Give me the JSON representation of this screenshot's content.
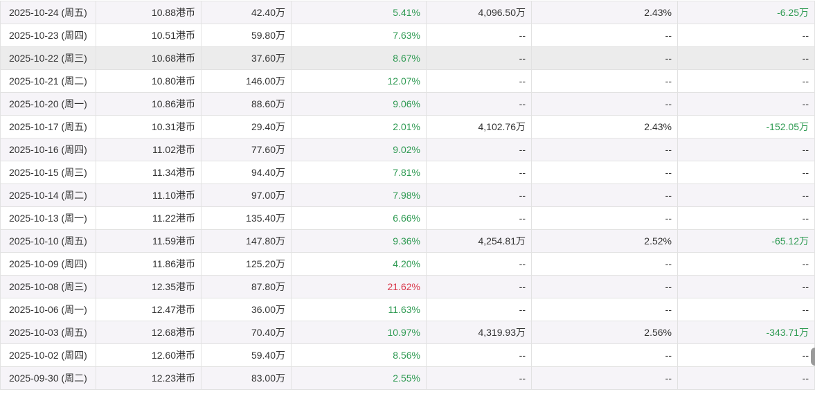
{
  "colors": {
    "gain": "#d9384b",
    "loss": "#2e9a52",
    "row_alt": "#f6f4f8",
    "row_hover": "#ececec"
  },
  "rows": [
    {
      "date": "2025-10-24 (周五)",
      "price": "10.88港币",
      "volume": "42.40万",
      "ratio": "5.41%",
      "ratio_trend": "down",
      "shares": "4,096.50万",
      "pct": "2.43%",
      "change": "-6.25万",
      "change_trend": "down"
    },
    {
      "date": "2025-10-23 (周四)",
      "price": "10.51港币",
      "volume": "59.80万",
      "ratio": "7.63%",
      "ratio_trend": "down",
      "shares": "--",
      "pct": "--",
      "change": "--",
      "change_trend": "none"
    },
    {
      "date": "2025-10-22 (周三)",
      "price": "10.68港币",
      "volume": "37.60万",
      "ratio": "8.67%",
      "ratio_trend": "down",
      "shares": "--",
      "pct": "--",
      "change": "--",
      "change_trend": "none"
    },
    {
      "date": "2025-10-21 (周二)",
      "price": "10.80港币",
      "volume": "146.00万",
      "ratio": "12.07%",
      "ratio_trend": "down",
      "shares": "--",
      "pct": "--",
      "change": "--",
      "change_trend": "none"
    },
    {
      "date": "2025-10-20 (周一)",
      "price": "10.86港币",
      "volume": "88.60万",
      "ratio": "9.06%",
      "ratio_trend": "down",
      "shares": "--",
      "pct": "--",
      "change": "--",
      "change_trend": "none"
    },
    {
      "date": "2025-10-17 (周五)",
      "price": "10.31港币",
      "volume": "29.40万",
      "ratio": "2.01%",
      "ratio_trend": "down",
      "shares": "4,102.76万",
      "pct": "2.43%",
      "change": "-152.05万",
      "change_trend": "down"
    },
    {
      "date": "2025-10-16 (周四)",
      "price": "11.02港币",
      "volume": "77.60万",
      "ratio": "9.02%",
      "ratio_trend": "down",
      "shares": "--",
      "pct": "--",
      "change": "--",
      "change_trend": "none"
    },
    {
      "date": "2025-10-15 (周三)",
      "price": "11.34港币",
      "volume": "94.40万",
      "ratio": "7.81%",
      "ratio_trend": "down",
      "shares": "--",
      "pct": "--",
      "change": "--",
      "change_trend": "none"
    },
    {
      "date": "2025-10-14 (周二)",
      "price": "11.10港币",
      "volume": "97.00万",
      "ratio": "7.98%",
      "ratio_trend": "down",
      "shares": "--",
      "pct": "--",
      "change": "--",
      "change_trend": "none"
    },
    {
      "date": "2025-10-13 (周一)",
      "price": "11.22港币",
      "volume": "135.40万",
      "ratio": "6.66%",
      "ratio_trend": "down",
      "shares": "--",
      "pct": "--",
      "change": "--",
      "change_trend": "none"
    },
    {
      "date": "2025-10-10 (周五)",
      "price": "11.59港币",
      "volume": "147.80万",
      "ratio": "9.36%",
      "ratio_trend": "down",
      "shares": "4,254.81万",
      "pct": "2.52%",
      "change": "-65.12万",
      "change_trend": "down"
    },
    {
      "date": "2025-10-09 (周四)",
      "price": "11.86港币",
      "volume": "125.20万",
      "ratio": "4.20%",
      "ratio_trend": "down",
      "shares": "--",
      "pct": "--",
      "change": "--",
      "change_trend": "none"
    },
    {
      "date": "2025-10-08 (周三)",
      "price": "12.35港币",
      "volume": "87.80万",
      "ratio": "21.62%",
      "ratio_trend": "up",
      "shares": "--",
      "pct": "--",
      "change": "--",
      "change_trend": "none"
    },
    {
      "date": "2025-10-06 (周一)",
      "price": "12.47港币",
      "volume": "36.00万",
      "ratio": "11.63%",
      "ratio_trend": "down",
      "shares": "--",
      "pct": "--",
      "change": "--",
      "change_trend": "none"
    },
    {
      "date": "2025-10-03 (周五)",
      "price": "12.68港币",
      "volume": "70.40万",
      "ratio": "10.97%",
      "ratio_trend": "down",
      "shares": "4,319.93万",
      "pct": "2.56%",
      "change": "-343.71万",
      "change_trend": "down"
    },
    {
      "date": "2025-10-02 (周四)",
      "price": "12.60港币",
      "volume": "59.40万",
      "ratio": "8.56%",
      "ratio_trend": "down",
      "shares": "--",
      "pct": "--",
      "change": "--",
      "change_trend": "none"
    },
    {
      "date": "2025-09-30 (周二)",
      "price": "12.23港币",
      "volume": "83.00万",
      "ratio": "2.55%",
      "ratio_trend": "down",
      "shares": "--",
      "pct": "--",
      "change": "--",
      "change_trend": "none"
    }
  ]
}
